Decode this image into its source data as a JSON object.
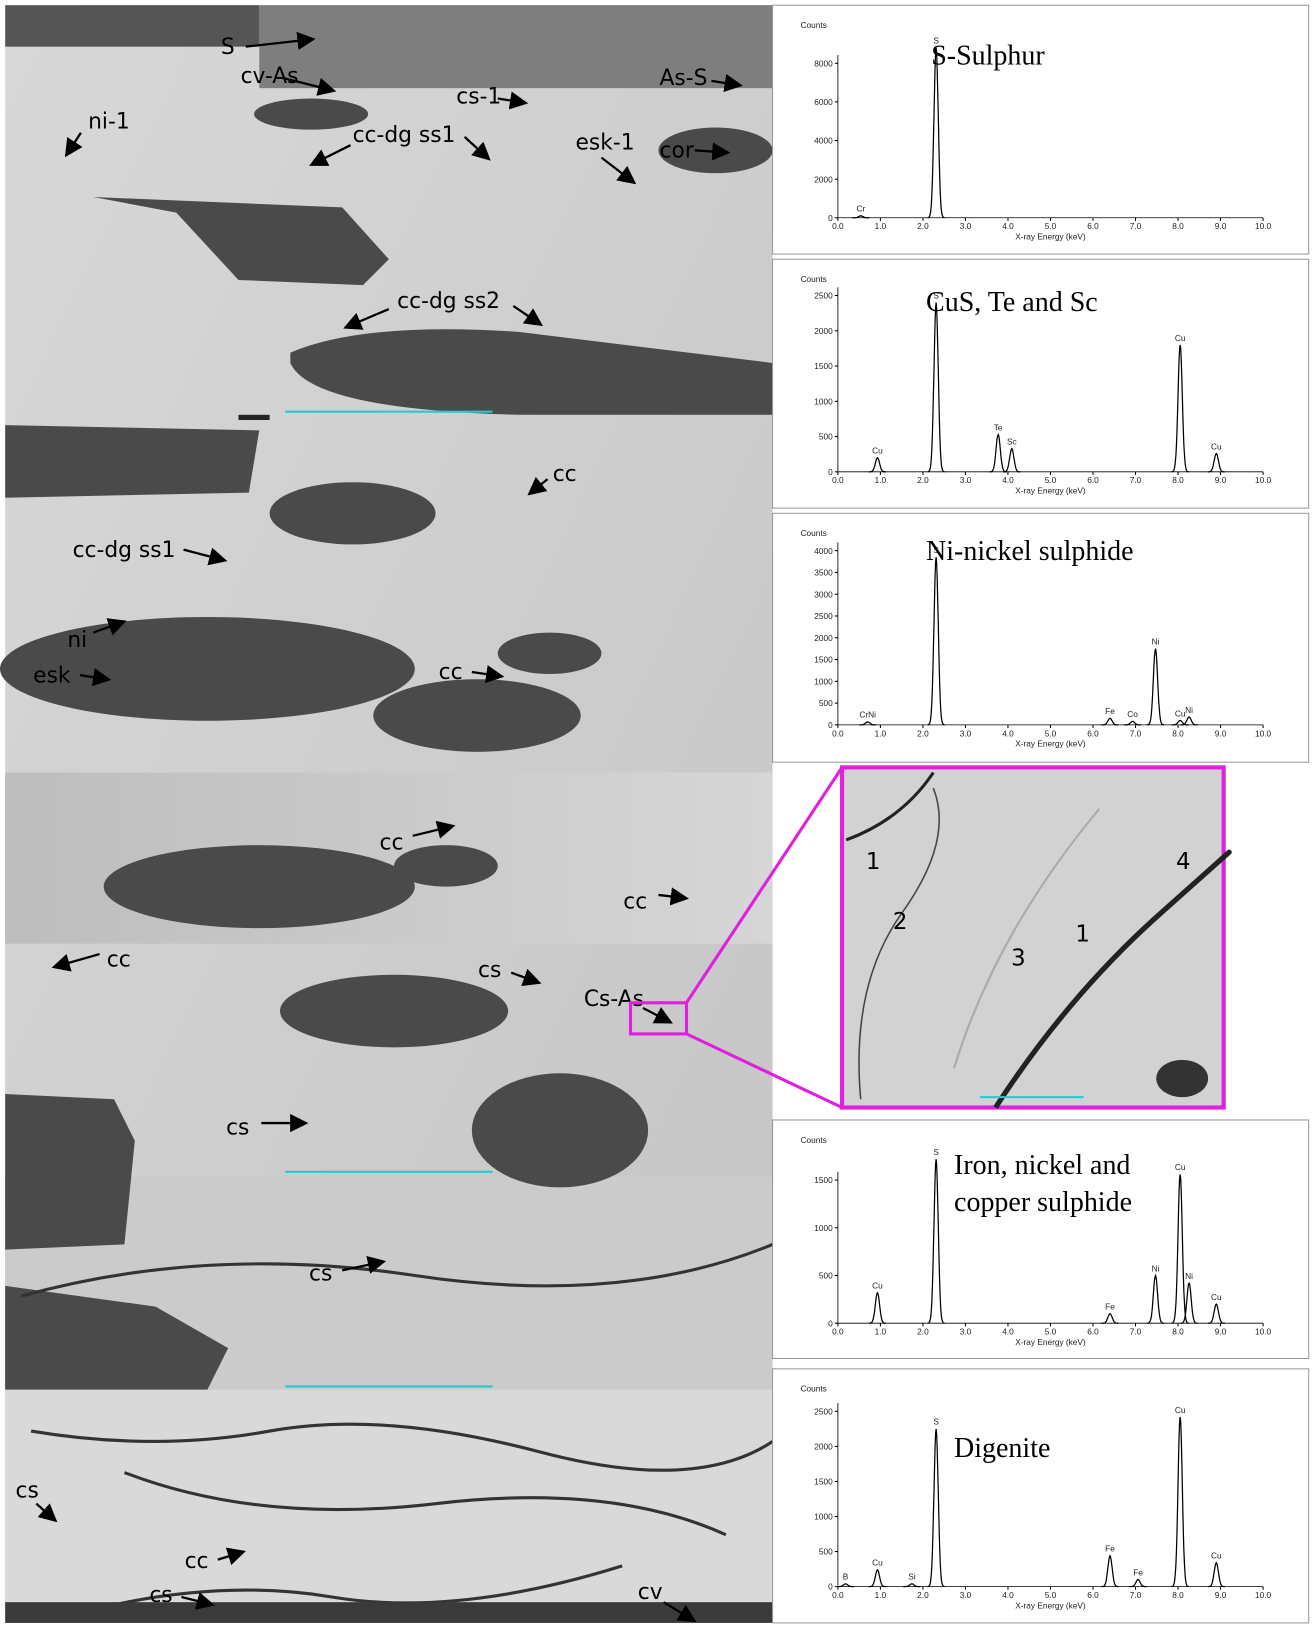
{
  "micrograph": {
    "labels": [
      "S",
      "cv-As",
      "cs-1",
      "As-S",
      "ni-1",
      "cc-dg ss1",
      "esk-1",
      "cor",
      "cc-dg ss2",
      "cc",
      "cc-dg ss1",
      "ni",
      "esk",
      "cc",
      "cc",
      "cc",
      "cc",
      "cs",
      "Cs-As",
      "cs",
      "cs",
      "cs",
      "cc",
      "cs",
      "cv"
    ]
  },
  "inset": {
    "labels": [
      "1",
      "2",
      "3",
      "1",
      "4"
    ]
  },
  "counts_label": "Counts",
  "energy_axis": {
    "label": "X-ray Energy (keV)",
    "xlim": [
      0,
      10
    ],
    "xticks": [
      {
        "value": 0,
        "label": "0.0"
      },
      {
        "value": 1,
        "label": "1.0"
      },
      {
        "value": 2,
        "label": "2.0"
      },
      {
        "value": 3,
        "label": "3.0"
      },
      {
        "value": 4,
        "label": "4.0"
      },
      {
        "value": 5,
        "label": "5.0"
      },
      {
        "value": 6,
        "label": "6.0"
      },
      {
        "value": 7,
        "label": "7.0"
      },
      {
        "value": 8,
        "label": "8.0"
      },
      {
        "value": 9,
        "label": "9.0"
      },
      {
        "value": 10,
        "label": "10.0"
      }
    ]
  },
  "spectra": [
    {
      "title": [
        "S-Sulphur"
      ],
      "ylim": [
        0,
        8000
      ],
      "yticks": [
        0,
        2000,
        4000,
        6000,
        8000
      ],
      "peaks": [
        {
          "label": "Cr",
          "energy": 0.54,
          "counts": 100
        },
        {
          "label": "S",
          "energy": 2.31,
          "counts": 8800
        }
      ]
    },
    {
      "title": [
        "CuS, Te and Sc"
      ],
      "ylim": [
        0,
        2500
      ],
      "yticks": [
        0,
        500,
        1000,
        1500,
        2000,
        2500
      ],
      "peaks": [
        {
          "label": "Cu",
          "energy": 0.93,
          "counts": 200
        },
        {
          "label": "S",
          "energy": 2.31,
          "counts": 2400
        },
        {
          "label": "Te",
          "energy": 3.77,
          "counts": 530
        },
        {
          "label": "Sc",
          "energy": 4.09,
          "counts": 330
        },
        {
          "label": "Cu",
          "energy": 8.05,
          "counts": 1800
        },
        {
          "label": "Cu",
          "energy": 8.9,
          "counts": 260
        }
      ]
    },
    {
      "title": [
        "Ni-nickel sulphide"
      ],
      "ylim": [
        0,
        4000
      ],
      "yticks": [
        0,
        500,
        1000,
        1500,
        2000,
        2500,
        3000,
        3500,
        4000
      ],
      "peaks": [
        {
          "label": "CrNi",
          "energy": 0.7,
          "counts": 70
        },
        {
          "label": "S",
          "energy": 2.31,
          "counts": 3850
        },
        {
          "label": "Fe",
          "energy": 6.4,
          "counts": 150
        },
        {
          "label": "Co",
          "energy": 6.93,
          "counts": 80
        },
        {
          "label": "Ni",
          "energy": 7.47,
          "counts": 1750
        },
        {
          "label": "Cu",
          "energy": 8.05,
          "counts": 100
        },
        {
          "label": "Ni",
          "energy": 8.26,
          "counts": 180
        }
      ]
    },
    {
      "title": [
        "Iron, nickel and",
        "copper sulphide"
      ],
      "ylim": [
        0,
        1500
      ],
      "yticks": [
        0,
        500,
        1000,
        1500
      ],
      "peaks": [
        {
          "label": "Cu",
          "energy": 0.93,
          "counts": 320
        },
        {
          "label": "S",
          "energy": 2.31,
          "counts": 1720
        },
        {
          "label": "Fe",
          "energy": 6.4,
          "counts": 100
        },
        {
          "label": "Ni",
          "energy": 7.47,
          "counts": 500
        },
        {
          "label": "Cu",
          "energy": 8.05,
          "counts": 1560
        },
        {
          "label": "Ni",
          "energy": 8.26,
          "counts": 420
        },
        {
          "label": "Cu",
          "energy": 8.9,
          "counts": 200
        }
      ]
    },
    {
      "title": [
        "Digenite"
      ],
      "ylim": [
        0,
        2500
      ],
      "yticks": [
        0,
        500,
        1000,
        1500,
        2000,
        2500
      ],
      "peaks": [
        {
          "label": "B",
          "energy": 0.18,
          "counts": 40
        },
        {
          "label": "Cu",
          "energy": 0.93,
          "counts": 240
        },
        {
          "label": "Si",
          "energy": 1.74,
          "counts": 40
        },
        {
          "label": "S",
          "energy": 2.31,
          "counts": 2250
        },
        {
          "label": "Fe",
          "energy": 6.4,
          "counts": 440
        },
        {
          "label": "Fe",
          "energy": 7.06,
          "counts": 100
        },
        {
          "label": "Cu",
          "energy": 8.05,
          "counts": 2420
        },
        {
          "label": "Cu",
          "energy": 8.9,
          "counts": 340
        }
      ]
    }
  ]
}
